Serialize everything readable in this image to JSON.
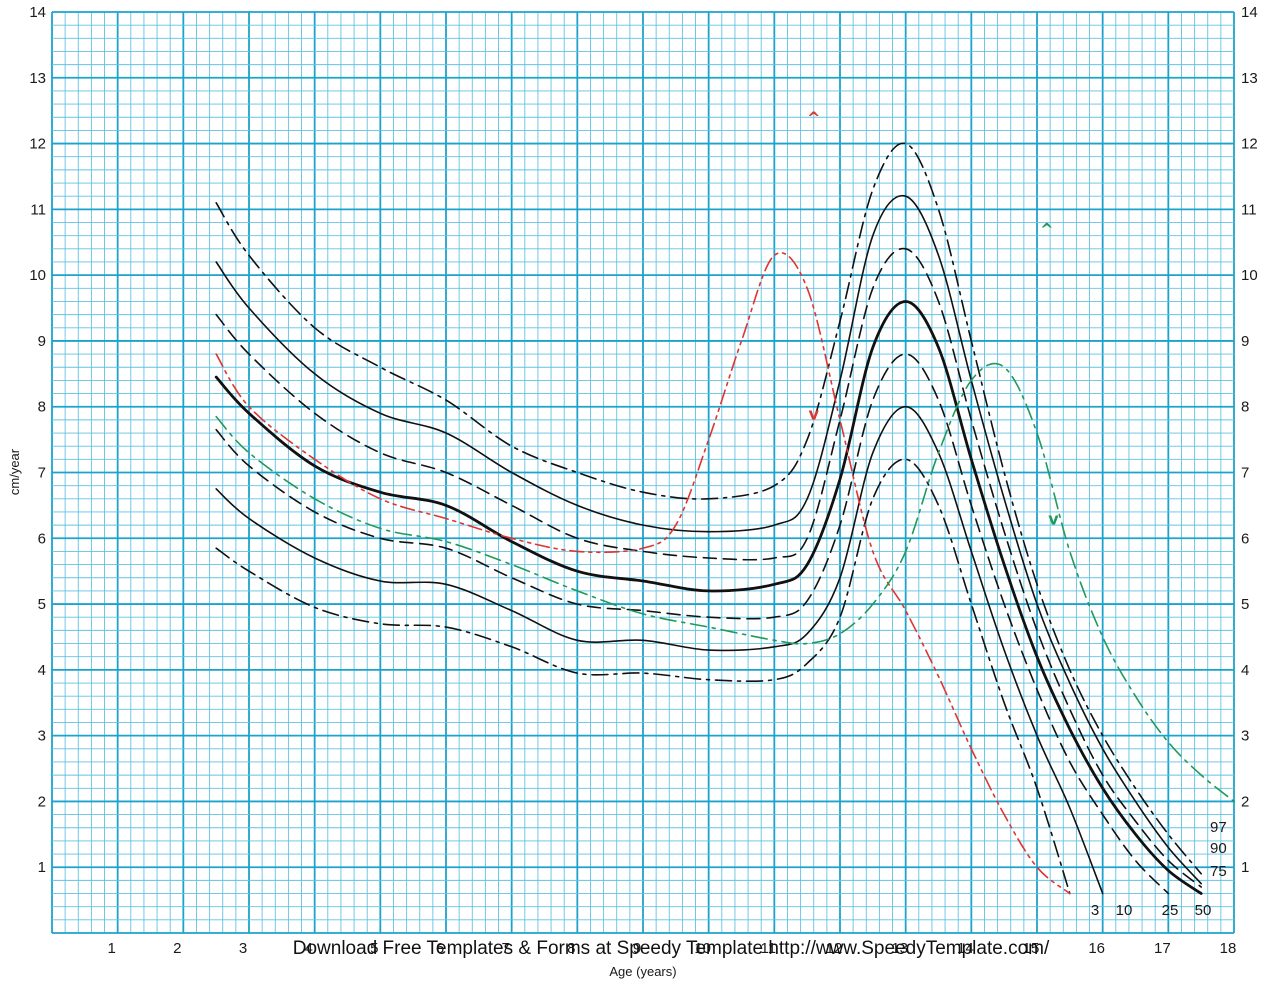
{
  "chart_data": {
    "type": "line",
    "title": "",
    "ylabel": "cm/year",
    "xlabel": "Age (years)",
    "xlim": [
      0,
      18
    ],
    "ylim": [
      0,
      14
    ],
    "x_ticks": [
      1,
      2,
      3,
      4,
      5,
      6,
      7,
      8,
      9,
      10,
      11,
      12,
      13,
      14,
      15,
      16,
      17,
      18
    ],
    "y_ticks": [
      1,
      2,
      3,
      4,
      5,
      6,
      7,
      8,
      9,
      10,
      11,
      12,
      13,
      14
    ],
    "grid": true,
    "colors": {
      "grid_major": "#1ba3cc",
      "grid_minor": "#62c2e2",
      "percentile": "#111111",
      "early": "#e0342f",
      "late": "#1f9a58"
    },
    "series": [
      {
        "name": "97",
        "style": "dashdot",
        "color": "#111111",
        "x": [
          2.5,
          3,
          4,
          5,
          6,
          7,
          8,
          9,
          10,
          11,
          11.5,
          12,
          12.5,
          13,
          13.5,
          14,
          14.5,
          15,
          15.5,
          16,
          16.5,
          17,
          17.5
        ],
        "y": [
          11.1,
          10.3,
          9.2,
          8.6,
          8.1,
          7.4,
          7.0,
          6.7,
          6.6,
          6.8,
          7.5,
          9.3,
          11.3,
          12.0,
          11.0,
          9.0,
          7.0,
          5.3,
          4.0,
          3.0,
          2.2,
          1.5,
          0.9
        ]
      },
      {
        "name": "90",
        "style": "solid",
        "color": "#111111",
        "x": [
          2.5,
          3,
          4,
          5,
          6,
          7,
          8,
          9,
          10,
          11,
          11.5,
          12,
          12.5,
          13,
          13.5,
          14,
          14.5,
          15,
          15.5,
          16,
          16.5,
          17,
          17.5
        ],
        "y": [
          10.2,
          9.5,
          8.5,
          7.9,
          7.6,
          7.0,
          6.5,
          6.2,
          6.1,
          6.2,
          6.6,
          8.4,
          10.6,
          11.2,
          10.3,
          8.4,
          6.6,
          5.0,
          3.8,
          2.8,
          2.0,
          1.3,
          0.75
        ]
      },
      {
        "name": "75",
        "style": "dashed",
        "color": "#111111",
        "x": [
          2.5,
          3,
          4,
          5,
          6,
          7,
          8,
          9,
          10,
          11,
          11.5,
          12,
          12.5,
          13,
          13.5,
          14,
          14.5,
          15,
          15.5,
          16,
          16.5,
          17,
          17.5
        ],
        "y": [
          9.4,
          8.8,
          7.9,
          7.3,
          7.0,
          6.5,
          6.0,
          5.8,
          5.7,
          5.7,
          6.0,
          7.8,
          9.8,
          10.4,
          9.6,
          7.8,
          6.1,
          4.6,
          3.4,
          2.4,
          1.7,
          1.1,
          0.7
        ]
      },
      {
        "name": "50",
        "style": "bold",
        "color": "#111111",
        "x": [
          2.5,
          3,
          4,
          5,
          6,
          7,
          8,
          9,
          10,
          11,
          11.5,
          12,
          12.5,
          13,
          13.5,
          14,
          14.5,
          15,
          15.5,
          16,
          16.5,
          17,
          17.5
        ],
        "y": [
          8.45,
          7.9,
          7.1,
          6.7,
          6.5,
          5.95,
          5.5,
          5.35,
          5.2,
          5.3,
          5.6,
          6.9,
          8.9,
          9.6,
          8.9,
          7.2,
          5.6,
          4.2,
          3.1,
          2.2,
          1.5,
          0.95,
          0.6
        ]
      },
      {
        "name": "25",
        "style": "dashed",
        "color": "#111111",
        "x": [
          2.5,
          3,
          4,
          5,
          6,
          7,
          8,
          9,
          10,
          11,
          11.5,
          12,
          12.5,
          13,
          13.5,
          14,
          14.5,
          15,
          15.5,
          16,
          16.5,
          17
        ],
        "y": [
          7.65,
          7.1,
          6.4,
          6.0,
          5.85,
          5.4,
          5.0,
          4.9,
          4.8,
          4.8,
          5.05,
          6.2,
          8.1,
          8.8,
          8.1,
          6.5,
          5.0,
          3.7,
          2.6,
          1.8,
          1.1,
          0.6
        ]
      },
      {
        "name": "10",
        "style": "solid",
        "color": "#111111",
        "x": [
          2.5,
          3,
          4,
          5,
          6,
          7,
          8,
          9,
          10,
          11,
          11.5,
          12,
          12.5,
          13,
          13.5,
          14,
          14.5,
          15,
          15.5,
          16
        ],
        "y": [
          6.75,
          6.3,
          5.7,
          5.35,
          5.3,
          4.9,
          4.45,
          4.45,
          4.3,
          4.35,
          4.55,
          5.4,
          7.3,
          8.0,
          7.3,
          5.8,
          4.3,
          3.0,
          1.9,
          0.6
        ]
      },
      {
        "name": "3",
        "style": "dashdot",
        "color": "#111111",
        "x": [
          2.5,
          3,
          4,
          5,
          6,
          7,
          8,
          9,
          10,
          11,
          11.5,
          12,
          12.5,
          13,
          13.5,
          14,
          14.5,
          15,
          15.5
        ],
        "y": [
          5.85,
          5.5,
          4.95,
          4.7,
          4.65,
          4.35,
          3.95,
          3.95,
          3.85,
          3.85,
          4.1,
          4.8,
          6.6,
          7.2,
          6.5,
          5.0,
          3.5,
          2.2,
          0.6
        ]
      },
      {
        "name": "",
        "style": "dashdotdot",
        "color": "#e0342f",
        "x": [
          2.5,
          3,
          4,
          5,
          6,
          7,
          8,
          9,
          9.5,
          10,
          10.5,
          11,
          11.5,
          12,
          12.5,
          13,
          13.5,
          14,
          14.5,
          15,
          15.5
        ],
        "y": [
          8.8,
          8.0,
          7.2,
          6.6,
          6.3,
          6.0,
          5.8,
          5.85,
          6.2,
          7.5,
          9.0,
          10.3,
          9.8,
          7.8,
          5.8,
          4.9,
          3.9,
          2.8,
          1.8,
          1.0,
          0.6
        ]
      },
      {
        "name": "",
        "style": "dashdot",
        "color": "#1f9a58",
        "x": [
          2.5,
          3,
          4,
          5,
          6,
          7,
          8,
          9,
          10,
          11,
          11.5,
          12,
          12.5,
          13,
          13.5,
          14,
          14.5,
          15,
          15.5,
          16,
          16.5,
          17,
          17.5,
          18
        ],
        "y": [
          7.85,
          7.3,
          6.6,
          6.15,
          5.95,
          5.6,
          5.2,
          4.85,
          4.65,
          4.45,
          4.4,
          4.55,
          5.0,
          5.8,
          7.3,
          8.4,
          8.6,
          7.6,
          5.8,
          4.5,
          3.6,
          2.9,
          2.4,
          2.0
        ]
      }
    ],
    "percentile_labels_right": [
      "97",
      "90",
      "75"
    ],
    "percentile_labels_bottom": [
      "3",
      "10",
      "25",
      "50"
    ],
    "markers": [
      {
        "symbol": "^",
        "color": "#e0342f",
        "x": 11.6,
        "y": 12.4
      },
      {
        "symbol": "v",
        "color": "#e0342f",
        "x": 11.6,
        "y": 7.9
      },
      {
        "symbol": "^",
        "color": "#1f9a58",
        "x": 15.15,
        "y": 10.7
      },
      {
        "symbol": "v",
        "color": "#1f9a58",
        "x": 15.25,
        "y": 6.3
      }
    ]
  },
  "watermark": "Download Free Templates & Forms at Speedy Template http://www.SpeedyTemplate.com/"
}
